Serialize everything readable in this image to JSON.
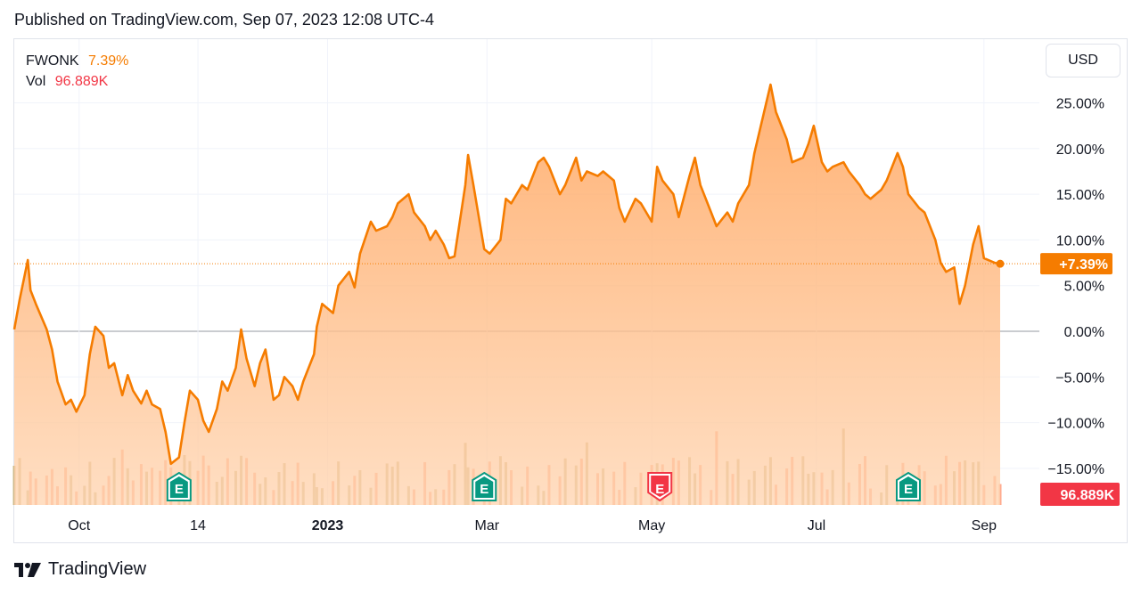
{
  "header": {
    "published": "Published on TradingView.com, Sep 07, 2023 12:08 UTC-4"
  },
  "legend": {
    "symbol": "FWONK",
    "change": "7.39%",
    "vol_label": "Vol",
    "vol_value": "96.889K"
  },
  "currency": "USD",
  "footer": {
    "brand": "TradingView"
  },
  "colors": {
    "line": "#f57c00",
    "area_top": "#ffa45c",
    "area_bottom": "#ffd4b0",
    "vol_up": "#c9b07a",
    "vol_down": "#ff9b7a",
    "price_badge": "#f57c00",
    "vol_badge": "#f23645",
    "earnings_green": "#089981",
    "earnings_red": "#f23645"
  },
  "chart_data": {
    "type": "area",
    "y_unit": "%",
    "ylim": [
      -18,
      30
    ],
    "y_ticks": [
      25,
      20,
      15,
      10,
      5,
      0,
      -5,
      -10,
      -15
    ],
    "y_tick_labels": [
      "25.00%",
      "20.00%",
      "15.00%",
      "10.00%",
      "5.00%",
      "0.00%",
      "−5.00%",
      "−10.00%",
      "−15.00%"
    ],
    "x_tick_labels": [
      {
        "label": "Oct",
        "x": "2022-10-01",
        "bold": false
      },
      {
        "label": "14",
        "x": "2022-11-14",
        "bold": false
      },
      {
        "label": "2023",
        "x": "2023-01-01",
        "bold": true
      },
      {
        "label": "Mar",
        "x": "2023-03-01",
        "bold": false
      },
      {
        "label": "May",
        "x": "2023-05-01",
        "bold": false
      },
      {
        "label": "Jul",
        "x": "2023-07-01",
        "bold": false
      },
      {
        "label": "Sep",
        "x": "2023-09-01",
        "bold": false
      }
    ],
    "x_range": [
      "2022-09-07",
      "2023-09-07"
    ],
    "series": [
      {
        "values": [
          [
            "2022-09-07",
            0.2
          ],
          [
            "2022-09-09",
            3.5
          ],
          [
            "2022-09-12",
            7.8
          ],
          [
            "2022-09-13",
            4.5
          ],
          [
            "2022-09-15",
            3.0
          ],
          [
            "2022-09-19",
            0.2
          ],
          [
            "2022-09-21",
            -2.0
          ],
          [
            "2022-09-23",
            -5.5
          ],
          [
            "2022-09-26",
            -8.0
          ],
          [
            "2022-09-28",
            -7.5
          ],
          [
            "2022-09-30",
            -8.8
          ],
          [
            "2022-10-03",
            -7.0
          ],
          [
            "2022-10-05",
            -2.5
          ],
          [
            "2022-10-07",
            0.5
          ],
          [
            "2022-10-10",
            -0.5
          ],
          [
            "2022-10-12",
            -4.0
          ],
          [
            "2022-10-14",
            -3.5
          ],
          [
            "2022-10-17",
            -7.0
          ],
          [
            "2022-10-19",
            -4.8
          ],
          [
            "2022-10-21",
            -6.5
          ],
          [
            "2022-10-24",
            -7.9
          ],
          [
            "2022-10-26",
            -6.5
          ],
          [
            "2022-10-28",
            -8.0
          ],
          [
            "2022-10-31",
            -8.5
          ],
          [
            "2022-11-02",
            -11.0
          ],
          [
            "2022-11-04",
            -14.5
          ],
          [
            "2022-11-07",
            -13.8
          ],
          [
            "2022-11-09",
            -10.0
          ],
          [
            "2022-11-11",
            -6.5
          ],
          [
            "2022-11-14",
            -7.5
          ],
          [
            "2022-11-16",
            -9.8
          ],
          [
            "2022-11-18",
            -11.0
          ],
          [
            "2022-11-21",
            -8.5
          ],
          [
            "2022-11-23",
            -5.5
          ],
          [
            "2022-11-25",
            -6.5
          ],
          [
            "2022-11-28",
            -4.0
          ],
          [
            "2022-11-30",
            0.2
          ],
          [
            "2022-12-02",
            -3.0
          ],
          [
            "2022-12-05",
            -6.0
          ],
          [
            "2022-12-07",
            -3.5
          ],
          [
            "2022-12-09",
            -2.0
          ],
          [
            "2022-12-12",
            -7.5
          ],
          [
            "2022-12-14",
            -7.0
          ],
          [
            "2022-12-16",
            -5.0
          ],
          [
            "2022-12-19",
            -6.0
          ],
          [
            "2022-12-21",
            -7.5
          ],
          [
            "2022-12-23",
            -5.5
          ],
          [
            "2022-12-27",
            -2.5
          ],
          [
            "2022-12-28",
            0.5
          ],
          [
            "2022-12-30",
            3.0
          ],
          [
            "2023-01-03",
            2.0
          ],
          [
            "2023-01-05",
            5.0
          ],
          [
            "2023-01-09",
            6.5
          ],
          [
            "2023-01-11",
            4.8
          ],
          [
            "2023-01-13",
            8.5
          ],
          [
            "2023-01-17",
            12.0
          ],
          [
            "2023-01-19",
            11.0
          ],
          [
            "2023-01-23",
            11.5
          ],
          [
            "2023-01-25",
            12.5
          ],
          [
            "2023-01-27",
            14.0
          ],
          [
            "2023-01-31",
            15.0
          ],
          [
            "2023-02-02",
            13.0
          ],
          [
            "2023-02-06",
            11.5
          ],
          [
            "2023-02-08",
            10.0
          ],
          [
            "2023-02-10",
            11.0
          ],
          [
            "2023-02-13",
            9.5
          ],
          [
            "2023-02-15",
            8.0
          ],
          [
            "2023-02-17",
            8.2
          ],
          [
            "2023-02-21",
            16.0
          ],
          [
            "2023-02-22",
            19.3
          ],
          [
            "2023-02-24",
            16.0
          ],
          [
            "2023-02-28",
            9.0
          ],
          [
            "2023-03-02",
            8.5
          ],
          [
            "2023-03-06",
            10.0
          ],
          [
            "2023-03-08",
            14.5
          ],
          [
            "2023-03-10",
            14.0
          ],
          [
            "2023-03-14",
            16.0
          ],
          [
            "2023-03-16",
            15.5
          ],
          [
            "2023-03-20",
            18.5
          ],
          [
            "2023-03-22",
            19.0
          ],
          [
            "2023-03-24",
            18.0
          ],
          [
            "2023-03-28",
            15.0
          ],
          [
            "2023-03-30",
            16.0
          ],
          [
            "2023-04-03",
            19.0
          ],
          [
            "2023-04-05",
            16.5
          ],
          [
            "2023-04-07",
            17.5
          ],
          [
            "2023-04-11",
            17.0
          ],
          [
            "2023-04-13",
            17.5
          ],
          [
            "2023-04-17",
            16.5
          ],
          [
            "2023-04-19",
            13.5
          ],
          [
            "2023-04-21",
            12.0
          ],
          [
            "2023-04-25",
            14.5
          ],
          [
            "2023-04-27",
            14.0
          ],
          [
            "2023-05-01",
            12.0
          ],
          [
            "2023-05-03",
            18.0
          ],
          [
            "2023-05-05",
            16.5
          ],
          [
            "2023-05-09",
            15.0
          ],
          [
            "2023-05-11",
            12.5
          ],
          [
            "2023-05-15",
            17.0
          ],
          [
            "2023-05-17",
            19.0
          ],
          [
            "2023-05-19",
            16.0
          ],
          [
            "2023-05-23",
            13.0
          ],
          [
            "2023-05-25",
            11.5
          ],
          [
            "2023-05-29",
            13.0
          ],
          [
            "2023-05-31",
            12.0
          ],
          [
            "2023-06-02",
            14.0
          ],
          [
            "2023-06-06",
            16.0
          ],
          [
            "2023-06-08",
            19.5
          ],
          [
            "2023-06-12",
            24.5
          ],
          [
            "2023-06-14",
            27.0
          ],
          [
            "2023-06-16",
            24.0
          ],
          [
            "2023-06-20",
            21.0
          ],
          [
            "2023-06-22",
            18.5
          ],
          [
            "2023-06-26",
            19.0
          ],
          [
            "2023-06-28",
            20.5
          ],
          [
            "2023-06-30",
            22.5
          ],
          [
            "2023-07-03",
            18.5
          ],
          [
            "2023-07-05",
            17.5
          ],
          [
            "2023-07-07",
            18.0
          ],
          [
            "2023-07-11",
            18.5
          ],
          [
            "2023-07-13",
            17.5
          ],
          [
            "2023-07-17",
            16.0
          ],
          [
            "2023-07-19",
            15.0
          ],
          [
            "2023-07-21",
            14.5
          ],
          [
            "2023-07-25",
            15.5
          ],
          [
            "2023-07-27",
            16.5
          ],
          [
            "2023-07-31",
            19.5
          ],
          [
            "2023-08-02",
            18.0
          ],
          [
            "2023-08-04",
            15.0
          ],
          [
            "2023-08-08",
            13.5
          ],
          [
            "2023-08-10",
            13.0
          ],
          [
            "2023-08-14",
            10.0
          ],
          [
            "2023-08-16",
            7.5
          ],
          [
            "2023-08-18",
            6.5
          ],
          [
            "2023-08-21",
            7.0
          ],
          [
            "2023-08-23",
            3.0
          ],
          [
            "2023-08-25",
            5.0
          ],
          [
            "2023-08-28",
            9.5
          ],
          [
            "2023-08-30",
            11.5
          ],
          [
            "2023-09-01",
            8.0
          ],
          [
            "2023-09-05",
            7.5
          ],
          [
            "2023-09-07",
            7.39
          ]
        ]
      }
    ],
    "last_value_label": "+7.39%",
    "volume_label": "96.889K",
    "earnings_markers": [
      {
        "x": "2022-11-07",
        "label": "E",
        "color": "green"
      },
      {
        "x": "2023-02-28",
        "label": "E",
        "color": "green"
      },
      {
        "x": "2023-05-04",
        "label": "E",
        "color": "red"
      },
      {
        "x": "2023-08-04",
        "label": "E",
        "color": "green"
      }
    ],
    "grid": true,
    "legend_position": "top-left"
  }
}
